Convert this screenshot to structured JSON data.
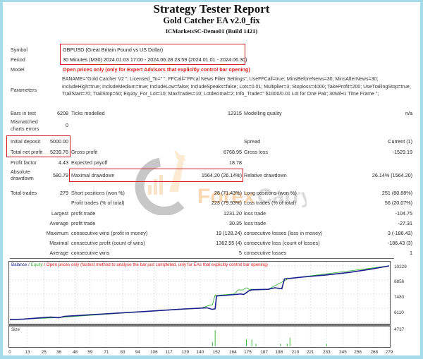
{
  "header": {
    "title": "Strategy Tester Report",
    "ea_name": "Gold Catcher EA v2.0_fix",
    "server": "ICMarketsSC-Demo01 (Build 1421)"
  },
  "info": {
    "symbol_label": "Symbol",
    "symbol_value": "GBPUSD (Great Britain Pound vs US Dollar)",
    "period_label": "Period",
    "period_value": "30 Minutes (M30) 2024.01.03 17:00 - 2024.06.28 23:59 (2024.01.01 - 2024.06.30)",
    "model_label": "Model",
    "model_value": "Open prices only (only for Expert Advisors that explicitly control bar opening)",
    "parameters_label": "Parameters",
    "parameters_value": "EANAME=\"Gold Catcher V2 \"; Licensed_To=\" \"; FFCall=\"FFcal News Filter Settings\"; UseFFCall=true; MinsBeforeNews=30; MinsAfterNews=30; IncludeHigh=true; IncludeMedium=true; IncludeLow=false; IncludeSpeaks=false; Lots=0.01; Multiplier=3; Stoploss=4000; TakeProfit=200; UseTrailingStop=true; TrailStart=70; TrailStop=60; Equity_For_Lot=10; MaxTrades=10; Lotdecimal=2; Info_Trade=\" $1000/0.01 Lot for One Pair; 30M/H1 Time Frame \";"
  },
  "stats": {
    "bars_in_test": {
      "label": "Bars in test",
      "value": "6208"
    },
    "ticks_modelled": {
      "label": "Ticks modelled",
      "value": "12315"
    },
    "modelling_quality": {
      "label": "Modelling quality",
      "value": "n/a"
    },
    "mismatched": {
      "label1": "Mismatched",
      "label2": "charts errors",
      "value": "0"
    },
    "initial_deposit": {
      "label": "Initial deposit",
      "value": "5000.00"
    },
    "spread": {
      "label": "Spread",
      "value": "Current (1)"
    },
    "total_net_profit": {
      "label": "Total net profit",
      "value": "5239.76"
    },
    "gross_profit": {
      "label": "Gross profit",
      "value": "6768.95"
    },
    "gross_loss": {
      "label": "Gross loss",
      "value": "-1529.19"
    },
    "profit_factor": {
      "label": "Profit factor",
      "value": "4.43"
    },
    "expected_payoff": {
      "label": "Expected payoff",
      "value": "18.78"
    },
    "absolute_drawdown": {
      "label1": "Absolute",
      "label2": "drawdown",
      "value": "580.79"
    },
    "maximal_drawdown": {
      "label": "Maximal drawdown",
      "value": "1564.20 (26.14%)"
    },
    "relative_drawdown": {
      "label": "Relative drawdown",
      "value": "26.14% (1564.20)"
    },
    "total_trades": {
      "label": "Total trades",
      "value": "279"
    },
    "short_positions": {
      "label": "Short positions (won %)",
      "value": "28 (71.43%)"
    },
    "long_positions": {
      "label": "Long positions (won %)",
      "value": "251 (80.88%)"
    },
    "profit_trades": {
      "label": "Profit trades (% of total)",
      "value": "223 (79.93%)"
    },
    "loss_trades": {
      "label": "Loss trades (% of total)",
      "value": "56 (20.07%)"
    },
    "largest": {
      "prefix": "Largest",
      "profit_label": "profit trade",
      "profit_value": "1231.20",
      "loss_label": "loss trade",
      "loss_value": "-104.75"
    },
    "average": {
      "prefix": "Average",
      "profit_label": "profit trade",
      "profit_value": "30.35",
      "loss_label": "loss trade",
      "loss_value": "-27.31"
    },
    "maximum": {
      "prefix": "Maximum",
      "profit_label": "consecutive wins (profit in money)",
      "profit_value": "19 (128.24)",
      "loss_label": "consecutive losses (loss in money)",
      "loss_value": "3 (-186.43)"
    },
    "maximal": {
      "prefix": "Maximal",
      "profit_label": "consecutive profit (count of wins)",
      "profit_value": "1362.55 (4)",
      "loss_label": "consecutive loss (count of losses)",
      "loss_value": "-186.43 (3)"
    },
    "average_consec": {
      "prefix": "Average",
      "profit_label": "consecutive wins",
      "profit_value": "5",
      "loss_label": "consecutive losses",
      "loss_value": "1"
    }
  },
  "chart": {
    "legend_balance": "Balance",
    "legend_sep1": " / ",
    "legend_equity": "Equity",
    "legend_rest": " / Open prices only (fastest method to analyse the bar just completed, only for EAs that explicitly control bar opening)",
    "size_label": "Size",
    "colors": {
      "balance": "#1a1f8c",
      "equity": "#3cb83c",
      "legend_red": "#e02020",
      "size_bar": "#3cb83c"
    }
  },
  "chart_data": {
    "type": "line",
    "title": "Balance / Equity",
    "xlabel": "Trade #",
    "ylabel": "Balance",
    "ylim": [
      4737,
      10229
    ],
    "y_ticks": [
      "10229",
      "8856",
      "7483",
      "6110",
      "4737"
    ],
    "x_ticks": [
      "0",
      "13",
      "25",
      "36",
      "48",
      "59",
      "71",
      "83",
      "94",
      "106",
      "117",
      "129",
      "140",
      "152",
      "164",
      "175",
      "187",
      "198",
      "210",
      "221",
      "233",
      "245",
      "256",
      "268",
      "279"
    ],
    "grid": true,
    "series": [
      {
        "name": "Balance",
        "x": [
          0,
          10,
          30,
          36,
          40,
          70,
          100,
          130,
          145,
          149,
          151,
          152,
          160,
          170,
          172,
          176,
          178,
          190,
          195,
          200,
          202,
          205,
          212,
          220,
          233,
          250,
          265,
          279
        ],
        "values": [
          5000,
          5050,
          5250,
          5180,
          5320,
          5560,
          5800,
          6050,
          6150,
          6000,
          6050,
          7300,
          7380,
          7500,
          7450,
          7820,
          7900,
          7950,
          8100,
          8000,
          8960,
          9000,
          9100,
          9200,
          9350,
          9600,
          9900,
          10229
        ]
      },
      {
        "name": "Equity",
        "x": [
          0,
          36,
          100,
          140,
          147,
          149,
          151,
          152,
          165,
          168,
          171,
          174,
          176,
          190,
          205,
          279
        ],
        "values": [
          5000,
          5200,
          5800,
          6100,
          6400,
          6450,
          7400,
          7350,
          7500,
          7900,
          7880,
          8100,
          7950,
          7950,
          9000,
          10229
        ]
      }
    ],
    "size_bars": {
      "x": [
        149,
        151,
        174,
        178,
        181,
        199,
        204,
        206,
        233
      ],
      "heights": [
        0.25,
        0.95,
        0.4,
        0.4,
        0.15,
        0.15,
        0.15,
        0.5,
        0.15
      ]
    }
  }
}
